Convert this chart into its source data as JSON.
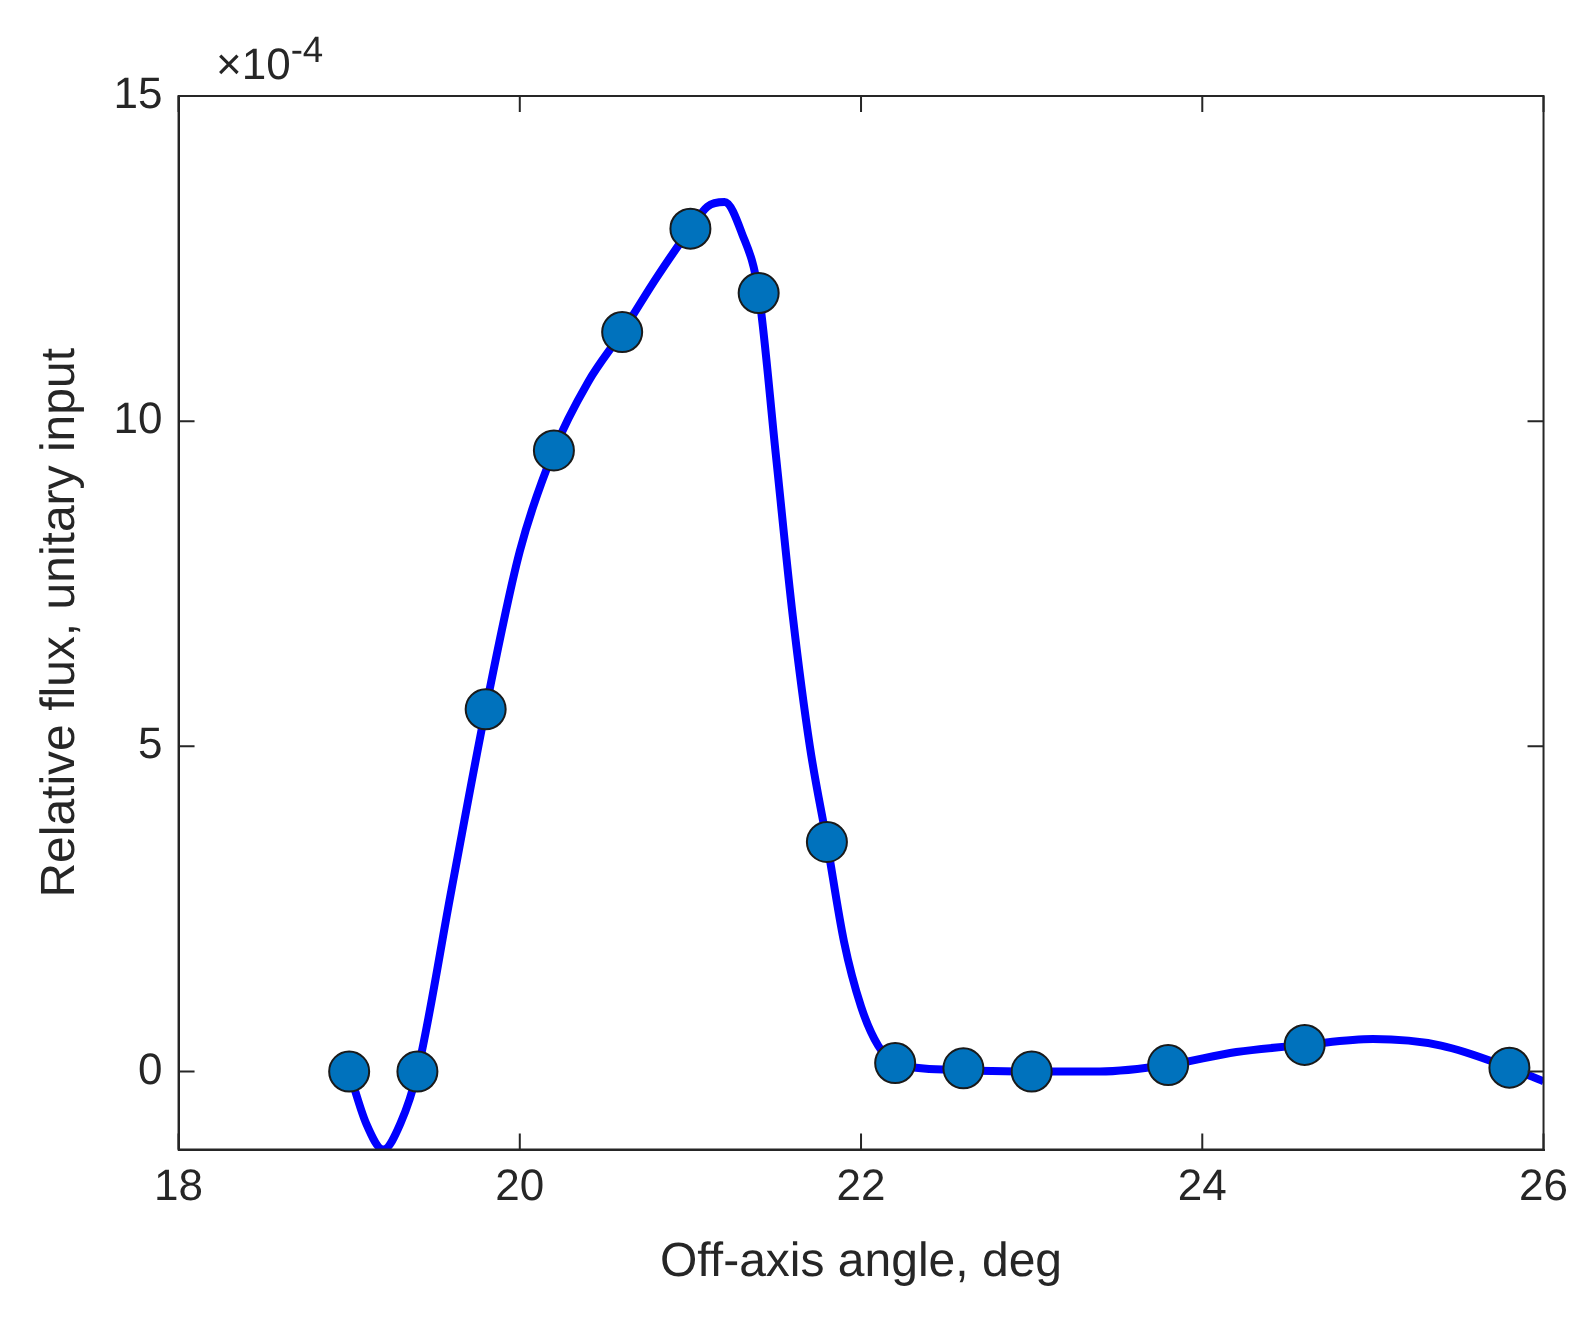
{
  "chart_data": {
    "type": "line",
    "xlabel": "Off-axis angle, deg",
    "ylabel": "Relative flux, unitary input",
    "annotations": [
      "×10$^{-4}$"
    ],
    "xlim": [
      18,
      26
    ],
    "xticks": [
      18,
      20,
      22,
      24,
      26
    ],
    "ylim": [
      -1.2,
      15
    ],
    "yticks": [
      0,
      5,
      10,
      15
    ],
    "grid": false,
    "legend": false,
    "series": [
      {
        "type": "line",
        "color": "#0000ff",
        "marker": "none",
        "x": [
          19,
          19.1,
          19.2,
          19.3,
          19.4,
          19.6,
          19.8,
          20.0,
          20.2,
          20.4,
          20.6,
          20.8,
          21.0,
          21.1,
          21.2,
          21.3,
          21.4,
          21.5,
          21.6,
          21.7,
          21.8,
          21.9,
          22.0,
          22.1,
          22.2,
          22.6,
          23.0,
          23.4,
          23.8,
          24.2,
          24.6,
          25.0,
          25.4,
          25.8,
          26.0
        ],
        "values": [
          0,
          -0.8,
          -1.2,
          -0.8,
          0,
          2.8,
          5.57,
          8,
          9.55,
          10.6,
          11.37,
          12.2,
          12.96,
          13.3,
          13.37,
          12.9,
          11.97,
          9.5,
          7,
          5,
          3.53,
          2,
          1,
          0.4,
          0.13,
          0.02,
          0,
          0,
          0.1,
          0.3,
          0.41,
          0.5,
          0.4,
          0.06,
          -0.15
        ]
      },
      {
        "type": "scatter",
        "color": "#0072bd",
        "marker": "circle",
        "x": [
          19,
          19.4,
          19.8,
          20.2,
          20.6,
          21.0,
          21.4,
          21.8,
          22.2,
          22.6,
          23.0,
          23.8,
          24.6,
          25.8
        ],
        "values": [
          0,
          0,
          5.57,
          9.55,
          11.37,
          12.96,
          11.97,
          3.53,
          0.13,
          0.05,
          0,
          0.1,
          0.41,
          0.06
        ]
      }
    ]
  }
}
